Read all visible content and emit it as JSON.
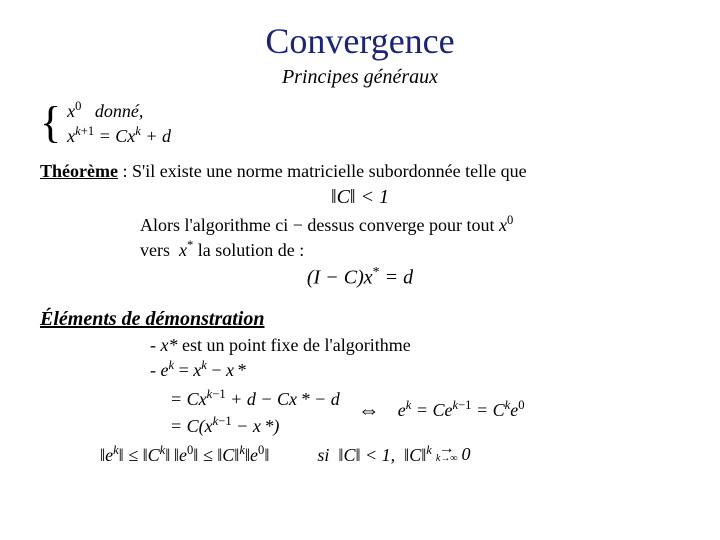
{
  "title": {
    "text": "Convergence",
    "color": "#1a237e",
    "fontsize": 36
  },
  "subtitle": {
    "text": "Principes généraux",
    "fontsize": 20
  },
  "init_system": {
    "line1_html": "<span class='i'>x</span><sup>0</sup> &nbsp;&nbsp;donné,",
    "line2_html": "<span class='i'>x</span><sup><span class='i'>k</span>+1</sup> = <span class='i'>Cx</span><sup><span class='i'>k</span></sup> + <span class='i'>d</span>"
  },
  "theorem": {
    "label_html": "<u><b>Théorème</b></u> : S'il existe une norme matricielle subordonnée telle que",
    "cond_html": "‖<span class='i'>C</span>‖ &lt; 1",
    "line_a_html": "Alors l'algorithme ci &minus; dessus converge pour tout <span class='i'>x</span><sup>0</sup>",
    "line_b_html": "vers&nbsp; <span class='i'>x</span><sup>*</sup> la solution de :",
    "eq_html": "(<span class='i'>I</span> &minus; <span class='i'>C</span>)<span class='i'>x</span><sup>*</sup> = <span class='i'>d</span>"
  },
  "proof": {
    "heading": "Éléments de démonstration",
    "bullet1_html": "- <span class='i'>x*</span> est un point fixe de l'algorithme",
    "bullet2_html": "- <span class='i'>e</span><sup><span class='i'>k</span></sup> = <span class='i'>x</span><sup><span class='i'>k</span></sup> &minus; <span class='i'>x</span>&thinsp;*",
    "deriv": {
      "l1_html": "= <span class='i'>Cx</span><sup><span class='i'>k</span>&minus;1</sup> + <span class='i'>d</span> &minus; <span class='i'>Cx</span>&thinsp;* &minus; <span class='i'>d</span>",
      "l2_html": "= <span class='i'>C</span>(<span class='i'>x</span><sup><span class='i'>k</span>&minus;1</sup> &minus; <span class='i'>x</span>&thinsp;*)",
      "arrow": "⇔",
      "rhs_html": "<span class='i'>e</span><sup><span class='i'>k</span></sup> = <span class='i'>Ce</span><sup><span class='i'>k</span>&minus;1</sup> = <span class='i'>C</span><sup><span class='i'>k</span></sup><span class='i'>e</span><sup>0</sup>"
    },
    "final": {
      "ineq_html": "‖<span class='i'>e</span><sup><span class='i'>k</span></sup>‖ ≤ ‖<span class='i'>C</span><sup><span class='i'>k</span></sup>‖&thinsp;‖<span class='i'>e</span><sup>0</sup>‖ ≤ ‖<span class='i'>C</span>‖<sup><span class='i'>k</span></sup>‖<span class='i'>e</span><sup>0</sup>‖",
      "si_html": "si &nbsp;‖<span class='i'>C</span>‖ &lt; 1, &nbsp;‖<span class='i'>C</span>‖<sup><span class='i'>k</span></sup>",
      "arrow_to_html": "0",
      "arrow_sub": "k→∞"
    }
  },
  "colors": {
    "title": "#1a237e",
    "text": "#000000",
    "background": "#ffffff"
  }
}
